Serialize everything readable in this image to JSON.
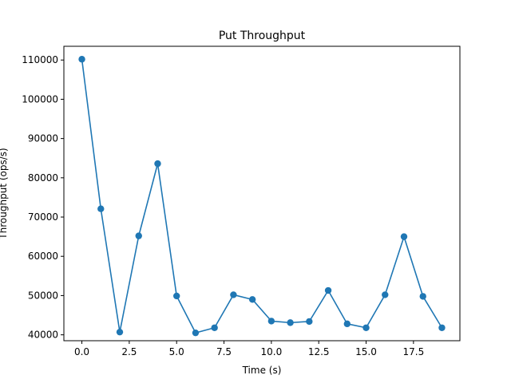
{
  "chart_data": {
    "type": "line",
    "title": "Put Throughput",
    "xlabel": "Time (s)",
    "ylabel": "Throughput (ops/s)",
    "xlim": [
      -0.95,
      19.95
    ],
    "ylim": [
      38500,
      113500
    ],
    "xticks": [
      0,
      2.5,
      5,
      7.5,
      10,
      12.5,
      15,
      17.5
    ],
    "xtick_labels": [
      "0.0",
      "2.5",
      "5.0",
      "7.5",
      "10.0",
      "12.5",
      "15.0",
      "17.5"
    ],
    "yticks": [
      40000,
      50000,
      60000,
      70000,
      80000,
      90000,
      100000,
      110000
    ],
    "ytick_labels": [
      "40000",
      "50000",
      "60000",
      "70000",
      "80000",
      "90000",
      "100000",
      "110000"
    ],
    "grid": false,
    "series": [
      {
        "color": "#1f77b4",
        "marker": "circle",
        "x": [
          0,
          1,
          2,
          3,
          4,
          5,
          6,
          7,
          8,
          9,
          10,
          11,
          12,
          13,
          14,
          15,
          16,
          17,
          18,
          19
        ],
        "y": [
          110200,
          72100,
          40700,
          65200,
          83600,
          49900,
          40500,
          41800,
          50200,
          49000,
          43500,
          43100,
          43400,
          51300,
          42800,
          41800,
          50200,
          65000,
          49800,
          41800
        ]
      }
    ]
  }
}
